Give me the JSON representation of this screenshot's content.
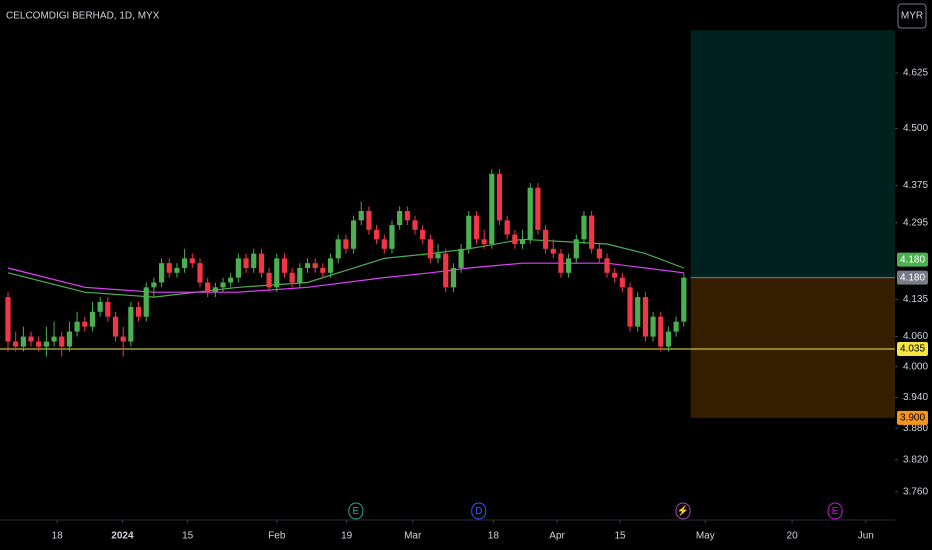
{
  "chart_data": {
    "type": "candlestick",
    "title": "CELCOMDIGI BERHAD, 1D, MYX",
    "currency_button": "MYR",
    "log_scale": true,
    "up_color": "#4caf50",
    "down_color": "#f23645",
    "candles": [
      [
        4.14,
        4.15,
        4.03,
        4.05
      ],
      [
        4.05,
        4.07,
        4.03,
        4.04
      ],
      [
        4.04,
        4.08,
        4.03,
        4.06
      ],
      [
        4.06,
        4.07,
        4.04,
        4.05
      ],
      [
        4.05,
        4.06,
        4.03,
        4.04
      ],
      [
        4.04,
        4.08,
        4.02,
        4.05
      ],
      [
        4.05,
        4.09,
        4.04,
        4.06
      ],
      [
        4.06,
        4.07,
        4.02,
        4.04
      ],
      [
        4.04,
        4.09,
        4.03,
        4.07
      ],
      [
        4.07,
        4.11,
        4.06,
        4.09
      ],
      [
        4.09,
        4.1,
        4.07,
        4.08
      ],
      [
        4.08,
        4.13,
        4.07,
        4.11
      ],
      [
        4.11,
        4.14,
        4.1,
        4.13
      ],
      [
        4.13,
        4.14,
        4.09,
        4.1
      ],
      [
        4.1,
        4.11,
        4.05,
        4.06
      ],
      [
        4.06,
        4.08,
        4.02,
        4.05
      ],
      [
        4.05,
        4.13,
        4.04,
        4.12
      ],
      [
        4.12,
        4.13,
        4.09,
        4.1
      ],
      [
        4.1,
        4.17,
        4.09,
        4.16
      ],
      [
        4.16,
        4.18,
        4.14,
        4.17
      ],
      [
        4.17,
        4.22,
        4.16,
        4.21
      ],
      [
        4.21,
        4.22,
        4.18,
        4.19
      ],
      [
        4.19,
        4.21,
        4.18,
        4.2
      ],
      [
        4.2,
        4.24,
        4.19,
        4.22
      ],
      [
        4.22,
        4.23,
        4.2,
        4.21
      ],
      [
        4.21,
        4.22,
        4.16,
        4.17
      ],
      [
        4.17,
        4.18,
        4.14,
        4.15
      ],
      [
        4.15,
        4.17,
        4.14,
        4.16
      ],
      [
        4.16,
        4.18,
        4.15,
        4.17
      ],
      [
        4.17,
        4.19,
        4.16,
        4.18
      ],
      [
        4.18,
        4.23,
        4.17,
        4.22
      ],
      [
        4.22,
        4.23,
        4.19,
        4.2
      ],
      [
        4.2,
        4.24,
        4.19,
        4.23
      ],
      [
        4.23,
        4.24,
        4.18,
        4.19
      ],
      [
        4.19,
        4.2,
        4.15,
        4.16
      ],
      [
        4.16,
        4.23,
        4.15,
        4.22
      ],
      [
        4.22,
        4.23,
        4.18,
        4.19
      ],
      [
        4.19,
        4.2,
        4.16,
        4.17
      ],
      [
        4.17,
        4.21,
        4.16,
        4.2
      ],
      [
        4.2,
        4.22,
        4.19,
        4.21
      ],
      [
        4.21,
        4.22,
        4.19,
        4.2
      ],
      [
        4.2,
        4.21,
        4.18,
        4.19
      ],
      [
        4.19,
        4.23,
        4.18,
        4.22
      ],
      [
        4.22,
        4.27,
        4.21,
        4.26
      ],
      [
        4.26,
        4.27,
        4.23,
        4.24
      ],
      [
        4.24,
        4.31,
        4.23,
        4.3
      ],
      [
        4.3,
        4.34,
        4.29,
        4.32
      ],
      [
        4.32,
        4.33,
        4.27,
        4.28
      ],
      [
        4.28,
        4.29,
        4.25,
        4.26
      ],
      [
        4.26,
        4.27,
        4.23,
        4.24
      ],
      [
        4.24,
        4.3,
        4.23,
        4.29
      ],
      [
        4.29,
        4.33,
        4.28,
        4.32
      ],
      [
        4.32,
        4.33,
        4.29,
        4.3
      ],
      [
        4.3,
        4.31,
        4.27,
        4.28
      ],
      [
        4.28,
        4.29,
        4.25,
        4.26
      ],
      [
        4.26,
        4.27,
        4.21,
        4.22
      ],
      [
        4.22,
        4.25,
        4.21,
        4.23
      ],
      [
        4.23,
        4.24,
        4.15,
        4.16
      ],
      [
        4.16,
        4.21,
        4.15,
        4.2
      ],
      [
        4.2,
        4.25,
        4.19,
        4.24
      ],
      [
        4.24,
        4.32,
        4.23,
        4.31
      ],
      [
        4.31,
        4.32,
        4.25,
        4.26
      ],
      [
        4.26,
        4.28,
        4.24,
        4.25
      ],
      [
        4.25,
        4.41,
        4.24,
        4.4
      ],
      [
        4.4,
        4.41,
        4.29,
        4.3
      ],
      [
        4.3,
        4.31,
        4.26,
        4.27
      ],
      [
        4.27,
        4.28,
        4.24,
        4.25
      ],
      [
        4.25,
        4.28,
        4.24,
        4.26
      ],
      [
        4.26,
        4.38,
        4.25,
        4.37
      ],
      [
        4.37,
        4.38,
        4.27,
        4.28
      ],
      [
        4.28,
        4.29,
        4.23,
        4.24
      ],
      [
        4.24,
        4.26,
        4.22,
        4.23
      ],
      [
        4.23,
        4.24,
        4.18,
        4.19
      ],
      [
        4.19,
        4.23,
        4.18,
        4.22
      ],
      [
        4.22,
        4.27,
        4.21,
        4.26
      ],
      [
        4.26,
        4.32,
        4.25,
        4.31
      ],
      [
        4.31,
        4.32,
        4.23,
        4.24
      ],
      [
        4.24,
        4.25,
        4.21,
        4.22
      ],
      [
        4.22,
        4.23,
        4.18,
        4.19
      ],
      [
        4.19,
        4.2,
        4.17,
        4.18
      ],
      [
        4.18,
        4.19,
        4.15,
        4.16
      ],
      [
        4.16,
        4.17,
        4.07,
        4.08
      ],
      [
        4.08,
        4.15,
        4.07,
        4.14
      ],
      [
        4.14,
        4.15,
        4.05,
        4.06
      ],
      [
        4.06,
        4.11,
        4.05,
        4.1
      ],
      [
        4.1,
        4.11,
        4.03,
        4.04
      ],
      [
        4.04,
        4.08,
        4.03,
        4.07
      ],
      [
        4.07,
        4.1,
        4.06,
        4.09
      ],
      [
        4.09,
        4.19,
        4.08,
        4.18
      ]
    ],
    "series": [
      {
        "color": "#4caf50",
        "x": [
          0,
          10,
          19,
          30,
          39,
          49,
          55,
          60,
          67,
          78,
          83,
          88
        ],
        "values": [
          4.19,
          4.15,
          4.14,
          4.16,
          4.17,
          4.22,
          4.23,
          4.24,
          4.26,
          4.25,
          4.23,
          4.2
        ]
      },
      {
        "color": "#e040fb",
        "x": [
          0,
          10,
          19,
          30,
          39,
          49,
          55,
          60,
          67,
          78,
          83,
          88
        ],
        "values": [
          4.2,
          4.16,
          4.15,
          4.15,
          4.16,
          4.18,
          4.19,
          4.2,
          4.21,
          4.21,
          4.2,
          4.19
        ]
      }
    ],
    "xlim": [
      -1.04,
      115.5
    ],
    "xticks": [
      {
        "value": 6.4,
        "label": "18"
      },
      {
        "value": 14.9,
        "label": "2024"
      },
      {
        "value": 23.4,
        "label": "15"
      },
      {
        "value": 35.0,
        "label": "Feb"
      },
      {
        "value": 44.1,
        "label": "19"
      },
      {
        "value": 52.7,
        "label": "Mar"
      },
      {
        "value": 63.2,
        "label": "18"
      },
      {
        "value": 71.5,
        "label": "Apr"
      },
      {
        "value": 79.7,
        "label": "15"
      },
      {
        "value": 90.8,
        "label": "May"
      },
      {
        "value": 102.1,
        "label": "20"
      },
      {
        "value": 111.7,
        "label": "Jun"
      }
    ],
    "ylim": [
      3.708,
      4.795
    ],
    "yticks": [
      4.625,
      {
        "value": 4.5,
        "label": "4.500"
      },
      4.375,
      4.295,
      4.135,
      {
        "value": 4.06,
        "label": "4.060"
      },
      {
        "value": 4.0,
        "label": "4.000"
      },
      {
        "value": 3.94,
        "label": "3.940"
      },
      {
        "value": 3.88,
        "label": "3.880"
      },
      {
        "value": 3.82,
        "label": "3.820"
      },
      {
        "value": 3.76,
        "label": "3.760"
      }
    ],
    "price_labels": [
      {
        "value": 4.18,
        "label": "4.180",
        "color": "#4caf50"
      },
      {
        "value": 4.18,
        "label": "4.180",
        "color": "#787b86"
      },
      {
        "value": 4.035,
        "label": "4.035",
        "color": "#f5e642"
      },
      {
        "value": 3.9,
        "label": "3.900",
        "color": "#f7941d"
      }
    ],
    "position": {
      "x_start": 88.9,
      "entry": 4.18,
      "target": 4.724,
      "stop": 3.9
    },
    "events": [
      {
        "x": 45.3,
        "label": "E",
        "color": "#26a69a"
      },
      {
        "x": 61.3,
        "label": "D",
        "color": "#2962ff"
      },
      {
        "x": 87.9,
        "label": "⚡",
        "color": "#ab47bc"
      },
      {
        "x": 107.7,
        "label": "E",
        "color": "#c51cdb"
      }
    ]
  }
}
